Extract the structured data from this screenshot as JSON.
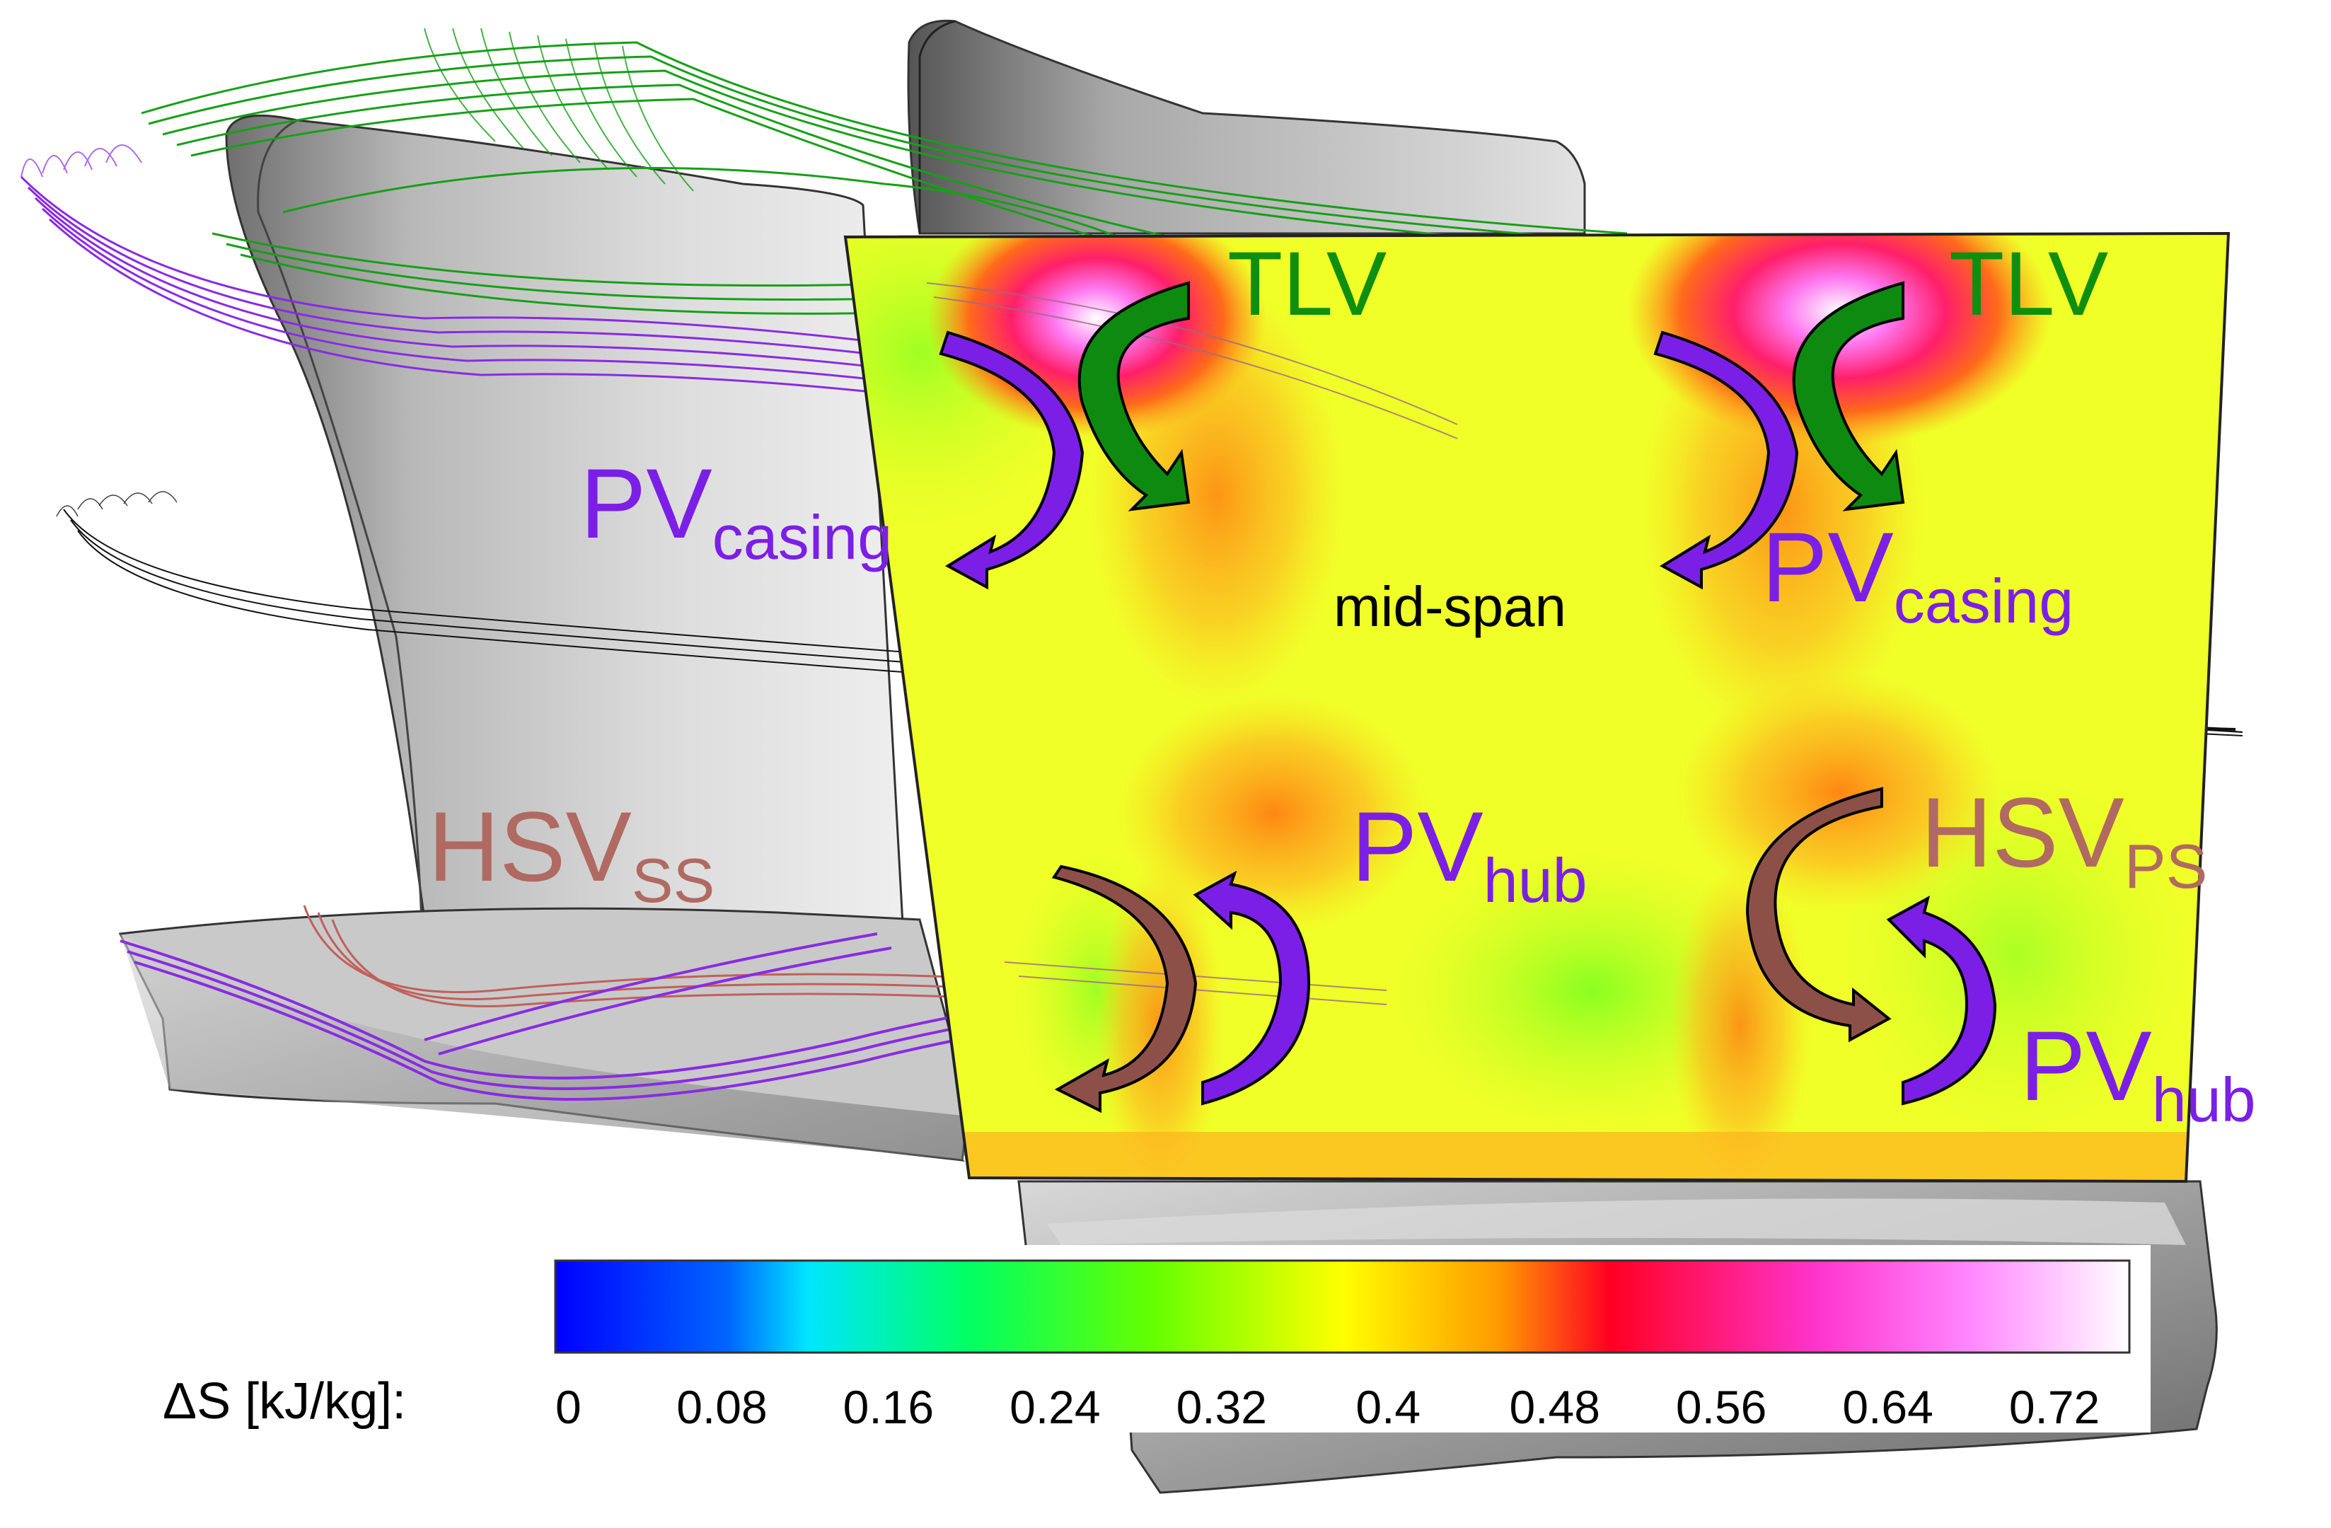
{
  "colors": {
    "tlv": "#0f8f0f",
    "pv": "#7b1fe6",
    "hsv": "#b06a62",
    "blade_light": "#e6e6e6",
    "blade_dark": "#7a7a7a"
  },
  "labels": {
    "tlv_left": "TLV",
    "tlv_right": "TLV",
    "pv_casing_left": {
      "main": "PV",
      "sub": "casing"
    },
    "pv_casing_right": {
      "main": "PV",
      "sub": "casing"
    },
    "mid_span": "mid-span",
    "hsv_ss": {
      "main": "HSV",
      "sub": "SS"
    },
    "hsv_ps": {
      "main": "HSV",
      "sub": "PS"
    },
    "pv_hub_center": {
      "main": "PV",
      "sub": "hub"
    },
    "pv_hub_right": {
      "main": "PV",
      "sub": "hub"
    }
  },
  "colorbar": {
    "label": "ΔS [kJ/kg]:",
    "ticks": [
      "0",
      "0.08",
      "0.16",
      "0.24",
      "0.32",
      "0.4",
      "0.48",
      "0.56",
      "0.64",
      "0.72"
    ],
    "stops": [
      "#0000ff",
      "#00e5ff",
      "#00ff66",
      "#66ff00",
      "#ffff00",
      "#ff9900",
      "#ff0022",
      "#ff33cc",
      "#ff99ff",
      "#ffffff"
    ]
  }
}
